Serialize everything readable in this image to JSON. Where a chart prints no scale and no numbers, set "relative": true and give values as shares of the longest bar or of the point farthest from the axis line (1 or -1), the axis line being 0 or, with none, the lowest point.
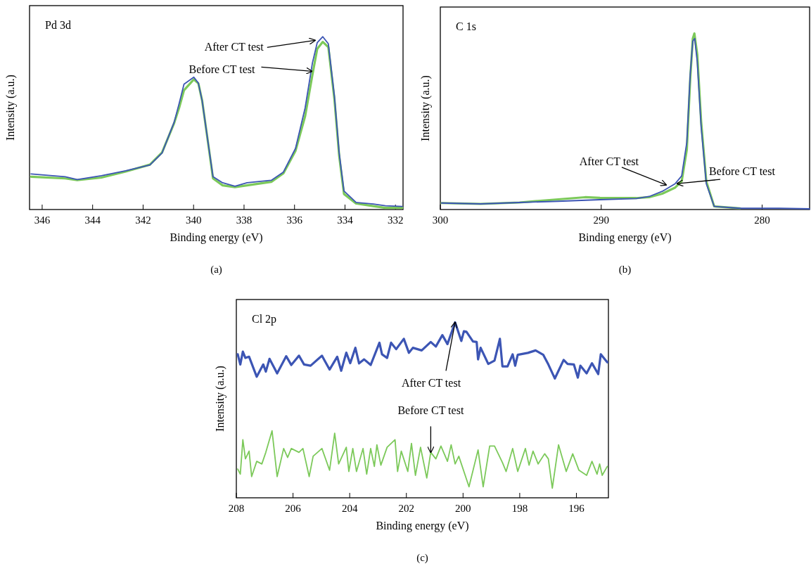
{
  "chart_data": [
    {
      "type": "line",
      "title": "Pd 3d",
      "xlabel": "Binding energy (eV)",
      "ylabel": "Intensity (a.u.)",
      "relative": true,
      "xlim": [
        346.5,
        331.7
      ],
      "xticks": [
        346,
        344,
        342,
        340,
        338,
        336,
        334,
        332
      ],
      "series": [
        {
          "color": "#7cc95a",
          "x": [
            346.44,
            345.09,
            344.61,
            343.65,
            342.69,
            341.73,
            341.25,
            340.77,
            340.57,
            340.38,
            339.99,
            339.81,
            339.66,
            339.42,
            339.23,
            338.85,
            338.36,
            337.88,
            336.92,
            336.44,
            335.96,
            335.58,
            335.29,
            335.1,
            334.88,
            334.66,
            334.42,
            334.23,
            334.04,
            333.56,
            332.88,
            332.4,
            331.73
          ],
          "values": [
            0.19,
            0.18,
            0.17,
            0.185,
            0.22,
            0.26,
            0.33,
            0.5,
            0.59,
            0.69,
            0.753,
            0.73,
            0.63,
            0.38,
            0.18,
            0.14,
            0.13,
            0.14,
            0.16,
            0.21,
            0.34,
            0.54,
            0.78,
            0.93,
            0.97,
            0.94,
            0.64,
            0.31,
            0.09,
            0.035,
            0.02,
            0.01,
            0.01
          ]
        },
        {
          "color": "#3c55b4",
          "x": [
            346.44,
            345.09,
            344.61,
            343.65,
            342.69,
            341.73,
            341.25,
            340.77,
            340.57,
            340.38,
            339.99,
            339.81,
            339.66,
            339.42,
            339.23,
            338.85,
            338.36,
            337.88,
            336.92,
            336.44,
            335.96,
            335.58,
            335.29,
            335.1,
            334.88,
            334.66,
            334.42,
            334.23,
            334.04,
            333.56,
            332.88,
            332.4,
            331.73
          ],
          "values": [
            0.206,
            0.19,
            0.173,
            0.196,
            0.224,
            0.258,
            0.327,
            0.505,
            0.615,
            0.725,
            0.766,
            0.732,
            0.629,
            0.382,
            0.19,
            0.155,
            0.135,
            0.155,
            0.169,
            0.217,
            0.354,
            0.588,
            0.849,
            0.966,
            1,
            0.959,
            0.657,
            0.327,
            0.107,
            0.041,
            0.032,
            0.022,
            0.018
          ]
        }
      ],
      "annotations": [
        {
          "text": "After CT test",
          "x": 335.19,
          "y": 0.979
        },
        {
          "text": "Before CT test",
          "x": 335.31,
          "y": 0.8
        },
        "(a)"
      ]
    },
    {
      "type": "line",
      "title": "C 1s",
      "xlabel": "Binding energy (eV)",
      "ylabel": "Intensity (a.u.)",
      "relative": true,
      "xlim": [
        300,
        277.05
      ],
      "xticks": [
        300,
        290,
        280
      ],
      "series": [
        {
          "color": "#7cc95a",
          "x": [
            299.92,
            297.5,
            295.08,
            292.66,
            291,
            290.08,
            287.82,
            287.02,
            286.21,
            285.4,
            285,
            284.68,
            284.47,
            284.31,
            284.21,
            284.03,
            283.79,
            283.47,
            282.98,
            281.37
          ],
          "values": [
            0.037,
            0.032,
            0.04,
            0.058,
            0.07,
            0.066,
            0.065,
            0.07,
            0.09,
            0.125,
            0.16,
            0.34,
            0.74,
            0.97,
            1,
            0.88,
            0.5,
            0.16,
            0.018,
            0.007
          ]
        },
        {
          "color": "#3c55b4",
          "x": [
            299.92,
            297.5,
            295.08,
            292.66,
            290.08,
            287.82,
            287.02,
            286.21,
            285.4,
            285,
            284.68,
            284.47,
            284.31,
            284.19,
            284.03,
            283.79,
            283.47,
            282.98,
            281.37,
            278.95,
            277.05
          ],
          "values": [
            0.037,
            0.032,
            0.04,
            0.047,
            0.056,
            0.062,
            0.074,
            0.103,
            0.147,
            0.191,
            0.382,
            0.765,
            0.956,
            0.971,
            0.838,
            0.471,
            0.147,
            0.018,
            0.007,
            0.007,
            0.004
          ]
        }
      ],
      "annotations": [
        {
          "text": "After CT test",
          "x": 285.97,
          "y": 0.14
        },
        {
          "text": "Before CT test",
          "x": 285.27,
          "y": 0.147
        },
        "(b)"
      ]
    },
    {
      "type": "line",
      "title": "Cl 2p",
      "xlabel": "Binding energy (eV)",
      "ylabel": "Intensity (a.u.)",
      "relative": true,
      "xlim": [
        208,
        194.87
      ],
      "xticks": [
        208,
        206,
        204,
        202,
        200,
        198,
        196
      ],
      "series": [
        {
          "color": "#3c55b4",
          "x": [
            207.95,
            207.86,
            207.77,
            207.68,
            207.55,
            207.28,
            207.05,
            206.96,
            206.83,
            206.56,
            206.24,
            206.06,
            205.79,
            205.61,
            205.38,
            204.98,
            204.71,
            204.44,
            204.3,
            204.12,
            203.98,
            203.8,
            203.67,
            203.49,
            203.26,
            202.95,
            202.86,
            202.68,
            202.54,
            202.36,
            202.09,
            201.91,
            201.77,
            201.46,
            201.14,
            200.96,
            200.73,
            200.55,
            200.28,
            200.06,
            199.97,
            199.88,
            199.65,
            199.52,
            199.47,
            199.38,
            199.11,
            198.89,
            198.7,
            198.61,
            198.43,
            198.25,
            198.16,
            198.07,
            197.71,
            197.44,
            197.17,
            196.99,
            196.76,
            196.45,
            196.31,
            196.09,
            195.95,
            195.86,
            195.64,
            195.45,
            195.23,
            195.14,
            194.91
          ],
          "values": [
            0.818,
            0.76,
            0.833,
            0.797,
            0.804,
            0.69,
            0.76,
            0.719,
            0.792,
            0.709,
            0.807,
            0.757,
            0.81,
            0.76,
            0.753,
            0.81,
            0.731,
            0.804,
            0.724,
            0.827,
            0.767,
            0.855,
            0.766,
            0.789,
            0.757,
            0.884,
            0.818,
            0.797,
            0.884,
            0.847,
            0.906,
            0.826,
            0.855,
            0.84,
            0.888,
            0.862,
            0.927,
            0.876,
            1,
            0.894,
            0.949,
            0.946,
            0.891,
            0.888,
            0.789,
            0.855,
            0.763,
            0.782,
            0.906,
            0.749,
            0.749,
            0.818,
            0.753,
            0.815,
            0.826,
            0.84,
            0.815,
            0.76,
            0.68,
            0.786,
            0.763,
            0.76,
            0.685,
            0.753,
            0.709,
            0.767,
            0.705,
            0.818,
            0.772
          ]
        },
        {
          "color": "#7cc95a",
          "x": [
            207.95,
            207.86,
            207.77,
            207.68,
            207.55,
            207.46,
            207.28,
            207.1,
            206.96,
            206.74,
            206.56,
            206.33,
            206.19,
            206.06,
            205.79,
            205.65,
            205.43,
            205.29,
            204.98,
            204.71,
            204.53,
            204.39,
            204.12,
            204.03,
            203.89,
            203.76,
            203.53,
            203.4,
            203.26,
            203.13,
            203.04,
            202.9,
            202.68,
            202.4,
            202.31,
            202.18,
            201.95,
            201.82,
            201.68,
            201.5,
            201.28,
            201.14,
            200.96,
            200.78,
            200.55,
            200.42,
            200.28,
            200.15,
            199.79,
            199.47,
            199.29,
            199.06,
            198.89,
            198.61,
            198.48,
            198.25,
            198.07,
            197.8,
            197.67,
            197.53,
            197.35,
            197.12,
            196.99,
            196.85,
            196.63,
            196.36,
            196.13,
            195.91,
            195.64,
            195.45,
            195.27,
            195.18,
            195.09,
            194.91
          ],
          "values": [
            0.164,
            0.135,
            0.331,
            0.222,
            0.266,
            0.121,
            0.208,
            0.193,
            0.259,
            0.382,
            0.121,
            0.281,
            0.23,
            0.281,
            0.259,
            0.281,
            0.121,
            0.237,
            0.281,
            0.157,
            0.368,
            0.193,
            0.288,
            0.15,
            0.281,
            0.15,
            0.281,
            0.135,
            0.281,
            0.179,
            0.302,
            0.186,
            0.288,
            0.331,
            0.15,
            0.266,
            0.15,
            0.31,
            0.128,
            0.288,
            0.113,
            0.259,
            0.222,
            0.295,
            0.208,
            0.302,
            0.193,
            0.237,
            0.063,
            0.273,
            0.063,
            0.295,
            0.295,
            0.201,
            0.15,
            0.281,
            0.15,
            0.281,
            0.186,
            0.266,
            0.193,
            0.251,
            0.222,
            0.055,
            0.302,
            0.15,
            0.251,
            0.157,
            0.128,
            0.208,
            0.135,
            0.193,
            0.128,
            0.179
          ]
        }
      ],
      "annotations": [
        {
          "text": "After CT test",
          "x": 200.28,
          "y": 1
        },
        {
          "text": "Before CT test",
          "x": 201.14,
          "y": 0.259
        },
        "(c)"
      ]
    }
  ]
}
